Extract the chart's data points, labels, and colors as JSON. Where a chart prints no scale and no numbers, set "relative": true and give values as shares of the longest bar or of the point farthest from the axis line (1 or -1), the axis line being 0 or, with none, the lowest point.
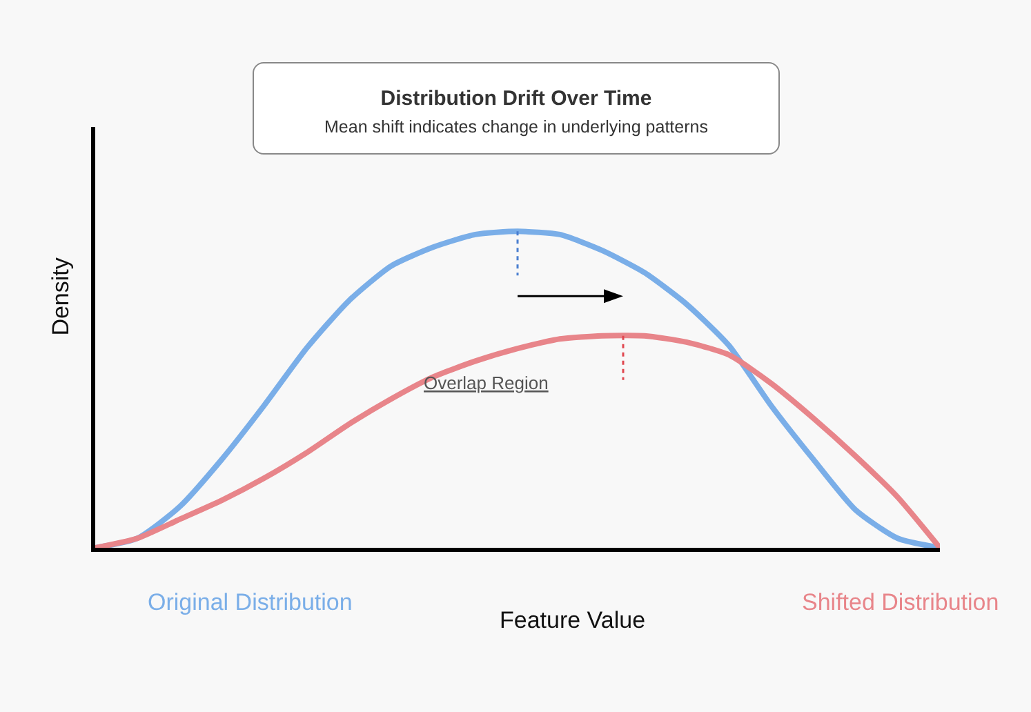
{
  "chart_data": {
    "type": "line",
    "title": "Distribution Drift Over Time",
    "subtitle": "Mean shift indicates change in underlying patterns",
    "xlabel": "Feature Value",
    "ylabel": "Density",
    "relative": true,
    "annotations": [
      "Overlap Region"
    ],
    "categories": [
      null,
      null,
      null,
      null,
      null,
      null,
      null,
      null,
      null,
      null,
      null,
      null,
      null,
      null,
      null,
      null,
      null,
      null,
      null,
      null,
      null
    ],
    "series": [
      {
        "name": "Original Distribution",
        "color": "#7aaee8",
        "values": [
          0,
          0.03,
          0.13,
          0.28,
          0.45,
          0.63,
          0.78,
          0.89,
          0.95,
          0.99,
          1,
          0.99,
          0.94,
          0.87,
          0.77,
          0.64,
          0.45,
          0.28,
          0.12,
          0.03,
          0
        ]
      },
      {
        "name": "Shifted Distribution",
        "color": "#e8858a",
        "values": [
          0,
          0.03,
          0.09,
          0.15,
          0.22,
          0.3,
          0.39,
          0.47,
          0.54,
          0.59,
          0.63,
          0.66,
          0.67,
          0.67,
          0.65,
          0.61,
          0.52,
          0.41,
          0.29,
          0.16,
          0
        ]
      }
    ],
    "line_style": "solid",
    "marker": "none",
    "legend": false
  }
}
